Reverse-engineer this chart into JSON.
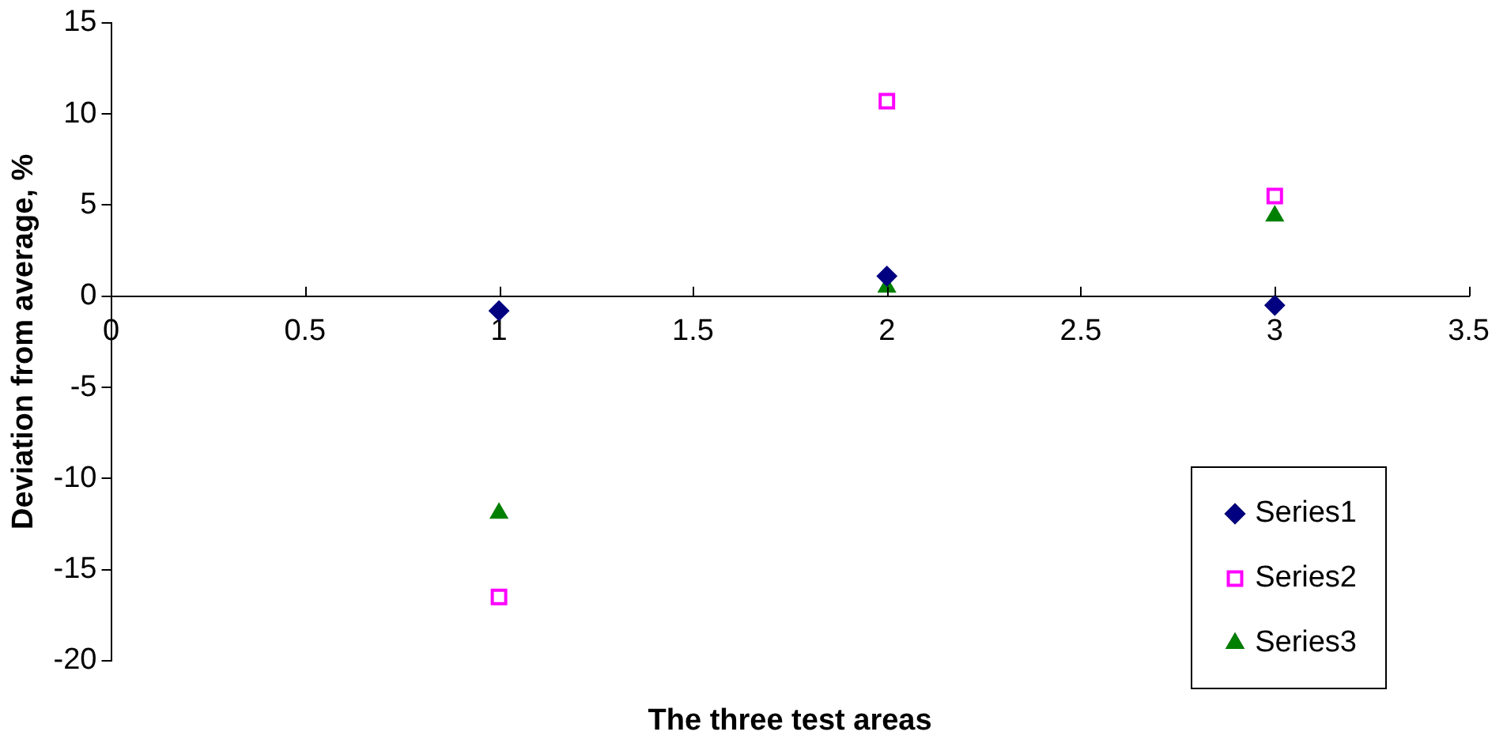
{
  "chart_data": {
    "type": "scatter",
    "xlabel": "The three test areas",
    "ylabel": "Deviation from average, %",
    "x": [
      1,
      2,
      3
    ],
    "series": [
      {
        "name": "Series1",
        "color": "#000080",
        "marker": "diamond",
        "values": [
          -0.8,
          1.1,
          -0.5
        ]
      },
      {
        "name": "Series2",
        "color": "#ff00ff",
        "marker": "square",
        "values": [
          -16.5,
          10.7,
          5.5
        ]
      },
      {
        "name": "Series3",
        "color": "#008000",
        "marker": "triangle",
        "values": [
          -11.9,
          0.5,
          4.4
        ]
      }
    ],
    "xlim": [
      0,
      3.5
    ],
    "xticks": [
      0,
      0.5,
      1,
      1.5,
      2,
      2.5,
      3,
      3.5
    ],
    "ylim": [
      -20,
      15
    ],
    "yticks": [
      -20,
      -15,
      -10,
      -5,
      0,
      5,
      10,
      15
    ],
    "grid": false,
    "legend": "bottom right"
  }
}
